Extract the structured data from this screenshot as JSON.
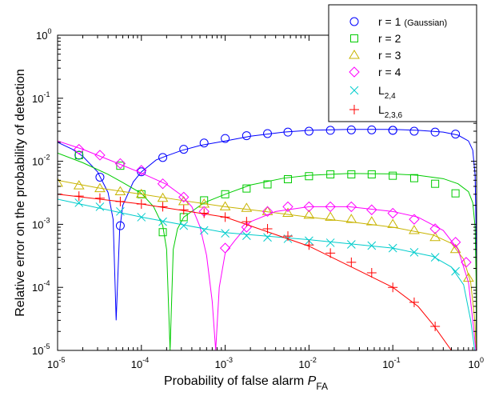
{
  "chart_data": {
    "type": "line",
    "xlabel": "Probability of false alarm",
    "xlabel_symbol": "P",
    "xlabel_symbol_sub": "FA",
    "ylabel": "Relative error on the probability of detection",
    "xscale": "log",
    "yscale": "log",
    "xlim": [
      1e-05,
      1
    ],
    "ylim": [
      1e-05,
      1
    ],
    "x_ticks": [
      {
        "v": 1e-05,
        "base": "10",
        "exp": "-5"
      },
      {
        "v": 0.0001,
        "base": "10",
        "exp": "-4"
      },
      {
        "v": 0.001,
        "base": "10",
        "exp": "-3"
      },
      {
        "v": 0.01,
        "base": "10",
        "exp": "-2"
      },
      {
        "v": 0.1,
        "base": "10",
        "exp": "-1"
      },
      {
        "v": 1,
        "base": "10",
        "exp": "0"
      }
    ],
    "y_ticks": [
      {
        "v": 1e-05,
        "base": "10",
        "exp": "-5"
      },
      {
        "v": 0.0001,
        "base": "10",
        "exp": "-4"
      },
      {
        "v": 0.001,
        "base": "10",
        "exp": "-3"
      },
      {
        "v": 0.01,
        "base": "10",
        "exp": "-2"
      },
      {
        "v": 0.1,
        "base": "10",
        "exp": "-1"
      },
      {
        "v": 1,
        "base": "10",
        "exp": "0"
      }
    ],
    "legend_position": "top-right",
    "series": [
      {
        "name": "r = 1",
        "name_note": "(Gaussian)",
        "color": "#0000ff",
        "marker": "circle",
        "curve": [
          [
            1e-05,
            0.02
          ],
          [
            1.5e-05,
            0.0155
          ],
          [
            2e-05,
            0.012
          ],
          [
            3e-05,
            0.0068
          ],
          [
            4e-05,
            0.0032
          ],
          [
            4.6e-05,
            0.0012
          ],
          [
            5e-05,
            3e-05
          ],
          [
            5.5e-05,
            0.0008
          ],
          [
            6e-05,
            0.002
          ],
          [
            8e-05,
            0.0047
          ],
          [
            0.0001,
            0.0068
          ],
          [
            0.00015,
            0.0105
          ],
          [
            0.0002,
            0.0122
          ],
          [
            0.0003,
            0.0148
          ],
          [
            0.0005,
            0.0178
          ],
          [
            0.001,
            0.021
          ],
          [
            0.002,
            0.025
          ],
          [
            0.005,
            0.029
          ],
          [
            0.01,
            0.031
          ],
          [
            0.03,
            0.032
          ],
          [
            0.1,
            0.032
          ],
          [
            0.2,
            0.031
          ],
          [
            0.4,
            0.029
          ],
          [
            0.6,
            0.026
          ],
          [
            0.8,
            0.021
          ],
          [
            0.9,
            0.015
          ],
          [
            0.96,
            0.006
          ],
          [
            0.985,
            0.0009
          ],
          [
            0.997,
            1e-05
          ]
        ],
        "markers": [
          [
            1.8e-05,
            0.0125
          ],
          [
            3.2e-05,
            0.0056
          ],
          [
            5.6e-05,
            0.00095
          ],
          [
            0.0001,
            0.0068
          ],
          [
            0.00018,
            0.0115
          ],
          [
            0.00032,
            0.0155
          ],
          [
            0.00056,
            0.0195
          ],
          [
            0.001,
            0.023
          ],
          [
            0.0018,
            0.0255
          ],
          [
            0.0032,
            0.0275
          ],
          [
            0.0056,
            0.029
          ],
          [
            0.01,
            0.03
          ],
          [
            0.018,
            0.031
          ],
          [
            0.032,
            0.0315
          ],
          [
            0.056,
            0.0315
          ],
          [
            0.1,
            0.031
          ],
          [
            0.18,
            0.03
          ],
          [
            0.32,
            0.029
          ],
          [
            0.56,
            0.027
          ],
          [
            0.1,
            0.031
          ]
        ]
      },
      {
        "name": "r = 2",
        "color": "#00cc00",
        "marker": "square",
        "curve": [
          [
            1e-05,
            0.0135
          ],
          [
            2e-05,
            0.0095
          ],
          [
            4e-05,
            0.0062
          ],
          [
            6e-05,
            0.0046
          ],
          [
            0.0001,
            0.0031
          ],
          [
            0.00014,
            0.0019
          ],
          [
            0.00018,
            0.00095
          ],
          [
            0.0002,
            0.0004
          ],
          [
            0.00022,
            1e-05
          ],
          [
            0.00024,
            0.0004
          ],
          [
            0.00027,
            0.00085
          ],
          [
            0.00032,
            0.0013
          ],
          [
            0.00056,
            0.0022
          ],
          [
            0.001,
            0.003
          ],
          [
            0.002,
            0.0042
          ],
          [
            0.005,
            0.0054
          ],
          [
            0.01,
            0.006
          ],
          [
            0.03,
            0.0064
          ],
          [
            0.1,
            0.0063
          ],
          [
            0.2,
            0.006
          ],
          [
            0.4,
            0.0053
          ],
          [
            0.6,
            0.0044
          ],
          [
            0.8,
            0.0033
          ],
          [
            0.9,
            0.0022
          ],
          [
            0.96,
            0.0009
          ],
          [
            0.985,
            0.00015
          ],
          [
            0.997,
            1e-05
          ]
        ],
        "markers": [
          [
            1.8e-05,
            0.0125
          ],
          [
            5.6e-05,
            0.0085
          ],
          [
            0.0001,
            0.003
          ],
          [
            0.00018,
            0.00075
          ],
          [
            0.00032,
            0.0013
          ],
          [
            0.00056,
            0.0024
          ],
          [
            0.001,
            0.003
          ],
          [
            0.0018,
            0.0037
          ],
          [
            0.0032,
            0.0043
          ],
          [
            0.0056,
            0.0052
          ],
          [
            0.01,
            0.0058
          ],
          [
            0.018,
            0.0062
          ],
          [
            0.032,
            0.0062
          ],
          [
            0.056,
            0.0062
          ],
          [
            0.1,
            0.0059
          ],
          [
            0.18,
            0.0054
          ],
          [
            0.32,
            0.0044
          ],
          [
            0.56,
            0.0031
          ]
        ]
      },
      {
        "name": "r = 3",
        "color": "#c8b400",
        "marker": "triangle",
        "curve": [
          [
            1e-05,
            0.005
          ],
          [
            3e-05,
            0.0038
          ],
          [
            0.0001,
            0.003
          ],
          [
            0.0003,
            0.0024
          ],
          [
            0.001,
            0.0019
          ],
          [
            0.003,
            0.0016
          ],
          [
            0.01,
            0.0013
          ],
          [
            0.03,
            0.0011
          ],
          [
            0.1,
            0.0009
          ],
          [
            0.3,
            0.00068
          ],
          [
            0.5,
            0.0005
          ],
          [
            0.7,
            0.00028
          ],
          [
            0.85,
            0.00012
          ],
          [
            0.95,
            3e-05
          ],
          [
            0.99,
            1e-05
          ]
        ],
        "markers": [
          [
            1e-05,
            0.0045
          ],
          [
            1.8e-05,
            0.0041
          ],
          [
            3.2e-05,
            0.0037
          ],
          [
            5.6e-05,
            0.0033
          ],
          [
            0.0001,
            0.003
          ],
          [
            0.00018,
            0.0026
          ],
          [
            0.00032,
            0.0023
          ],
          [
            0.00056,
            0.0021
          ],
          [
            0.001,
            0.0019
          ],
          [
            0.0018,
            0.0018
          ],
          [
            0.0032,
            0.0016
          ],
          [
            0.0056,
            0.0015
          ],
          [
            0.01,
            0.0014
          ],
          [
            0.018,
            0.0013
          ],
          [
            0.032,
            0.0012
          ],
          [
            0.056,
            0.0011
          ],
          [
            0.1,
            0.001
          ],
          [
            0.18,
            0.0008
          ],
          [
            0.32,
            0.00062
          ],
          [
            0.56,
            0.0004
          ],
          [
            0.8,
            0.00014
          ]
        ]
      },
      {
        "name": "r = 4",
        "color": "#ff00ff",
        "marker": "diamond",
        "curve": [
          [
            1e-05,
            0.021
          ],
          [
            2e-05,
            0.0155
          ],
          [
            5e-05,
            0.0095
          ],
          [
            0.0001,
            0.0065
          ],
          [
            0.0002,
            0.0043
          ],
          [
            0.0003,
            0.0029
          ],
          [
            0.0004,
            0.0019
          ],
          [
            0.0005,
            0.00092
          ],
          [
            0.0006,
            0.00032
          ],
          [
            0.0007,
            6e-05
          ],
          [
            0.00077,
            1e-05
          ],
          [
            0.00085,
            0.0001
          ],
          [
            0.001,
            0.00035
          ],
          [
            0.0013,
            0.00055
          ],
          [
            0.002,
            0.0011
          ],
          [
            0.004,
            0.0016
          ],
          [
            0.01,
            0.0019
          ],
          [
            0.03,
            0.0019
          ],
          [
            0.1,
            0.0016
          ],
          [
            0.2,
            0.0013
          ],
          [
            0.4,
            0.0008
          ],
          [
            0.6,
            0.0004
          ],
          [
            0.8,
            0.00012
          ],
          [
            0.9,
            3e-05
          ],
          [
            0.98,
            1e-05
          ]
        ],
        "markers": [
          [
            1.8e-05,
            0.0155
          ],
          [
            3.2e-05,
            0.0125
          ],
          [
            5.6e-05,
            0.0092
          ],
          [
            0.0001,
            0.0072
          ],
          [
            0.00018,
            0.0044
          ],
          [
            0.00032,
            0.0027
          ],
          [
            0.00056,
            0.0016
          ],
          [
            0.001,
            0.00042
          ],
          [
            0.0018,
            0.0009
          ],
          [
            0.0032,
            0.0016
          ],
          [
            0.0056,
            0.0019
          ],
          [
            0.01,
            0.0019
          ],
          [
            0.018,
            0.0019
          ],
          [
            0.032,
            0.0019
          ],
          [
            0.056,
            0.0017
          ],
          [
            0.1,
            0.0015
          ],
          [
            0.18,
            0.0012
          ],
          [
            0.32,
            0.00085
          ],
          [
            0.56,
            0.00052
          ],
          [
            0.75,
            0.00025
          ]
        ]
      },
      {
        "name": "L",
        "name_sub": "2,4",
        "color": "#00cccc",
        "marker": "x",
        "curve": [
          [
            1e-05,
            0.0025
          ],
          [
            0.0001,
            0.0013
          ],
          [
            0.001,
            0.00074
          ],
          [
            0.01,
            0.00057
          ],
          [
            0.1,
            0.00042
          ],
          [
            0.3,
            0.00031
          ],
          [
            0.5,
            0.00021
          ],
          [
            0.7,
            0.00011
          ],
          [
            0.85,
            3e-05
          ],
          [
            0.95,
            1e-05
          ]
        ],
        "markers": [
          [
            1.8e-05,
            0.0022
          ],
          [
            3.2e-05,
            0.0019
          ],
          [
            5.6e-05,
            0.0016
          ],
          [
            0.0001,
            0.0013
          ],
          [
            0.00018,
            0.0011
          ],
          [
            0.00032,
            0.00095
          ],
          [
            0.00056,
            0.0008
          ],
          [
            0.001,
            0.00072
          ],
          [
            0.0018,
            0.00066
          ],
          [
            0.0032,
            0.00062
          ],
          [
            0.0056,
            0.00059
          ],
          [
            0.01,
            0.00055
          ],
          [
            0.018,
            0.00051
          ],
          [
            0.032,
            0.00048
          ],
          [
            0.056,
            0.00046
          ],
          [
            0.1,
            0.00042
          ],
          [
            0.18,
            0.00036
          ],
          [
            0.32,
            0.0003
          ],
          [
            0.56,
            0.00018
          ]
        ]
      },
      {
        "name": "L",
        "name_sub": "2,3,6",
        "color": "#ff0000",
        "marker": "plus",
        "curve": [
          [
            1e-05,
            0.003
          ],
          [
            0.0001,
            0.0021
          ],
          [
            0.001,
            0.0013
          ],
          [
            0.01,
            0.00045
          ],
          [
            0.03,
            0.00022
          ],
          [
            0.1,
            0.0001
          ],
          [
            0.2,
            5e-05
          ],
          [
            0.3,
            2.6e-05
          ],
          [
            0.5,
            1e-05
          ]
        ],
        "markers": [
          [
            1e-05,
            0.003
          ],
          [
            1.8e-05,
            0.0028
          ],
          [
            3.2e-05,
            0.0026
          ],
          [
            5.6e-05,
            0.0023
          ],
          [
            0.0001,
            0.0021
          ],
          [
            0.00018,
            0.0019
          ],
          [
            0.00032,
            0.0017
          ],
          [
            0.00056,
            0.0015
          ],
          [
            0.001,
            0.0013
          ],
          [
            0.0018,
            0.0011
          ],
          [
            0.0032,
            0.00085
          ],
          [
            0.0056,
            0.00065
          ],
          [
            0.01,
            0.00047
          ],
          [
            0.018,
            0.00035
          ],
          [
            0.032,
            0.00025
          ],
          [
            0.056,
            0.00017
          ],
          [
            0.1,
            0.0001
          ],
          [
            0.18,
            5.8e-05
          ],
          [
            0.32,
            2.4e-05
          ]
        ]
      }
    ]
  }
}
